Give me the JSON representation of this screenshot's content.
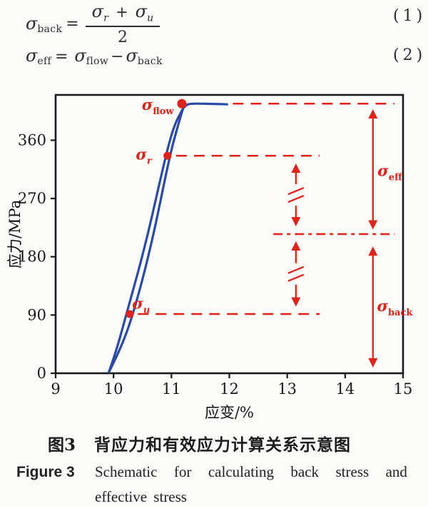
{
  "equations": {
    "eq1": {
      "lhs_sigma": "σ",
      "lhs_sub": "back",
      "equals": "=",
      "num_sigma1": "σ",
      "num_sub1": "r",
      "plus": "+",
      "num_sigma2": "σ",
      "num_sub2": "u",
      "denominator": "2",
      "number": "(1)"
    },
    "eq2": {
      "lhs_sigma": "σ",
      "lhs_sub": "eff",
      "equals": "=",
      "rhs1_sigma": "σ",
      "rhs1_sub": "flow",
      "minus": "−",
      "rhs2_sigma": "σ",
      "rhs2_sub": "back",
      "number": "(2)"
    }
  },
  "chart_data": {
    "type": "line",
    "title": "",
    "xlabel": "应变/%",
    "ylabel": "应力/MPa",
    "xlim": [
      9,
      15
    ],
    "ylim": [
      0,
      430
    ],
    "xticks": [
      "9",
      "10",
      "11",
      "12",
      "13",
      "14",
      "15"
    ],
    "yticks": [
      "0",
      "90",
      "180",
      "270",
      "360"
    ],
    "grid": false,
    "legend": false,
    "key_values": {
      "sigma_flow_MPa": 417,
      "sigma_r_MPa": 336,
      "sigma_u_MPa": 92,
      "sigma_back_MPa": 214,
      "unload_reload_strain_pct": 9.9,
      "flow_strain_pct": 11.2
    },
    "series": [
      {
        "name": "reloading-branch",
        "color": "#2b4aa5",
        "points": [
          [
            9.92,
            2
          ],
          [
            10.05,
            35
          ],
          [
            10.22,
            91
          ],
          [
            10.55,
            197
          ],
          [
            10.9,
            336
          ],
          [
            11.05,
            384
          ],
          [
            11.2,
            409
          ]
        ]
      },
      {
        "name": "unloading-branch",
        "color": "#2b4aa5",
        "points": [
          [
            9.92,
            2
          ],
          [
            10.11,
            35
          ],
          [
            10.34,
            91
          ],
          [
            10.66,
            200
          ],
          [
            10.97,
            336
          ],
          [
            11.11,
            382
          ],
          [
            11.2,
            409
          ]
        ]
      },
      {
        "name": "flow-plateau",
        "color": "#2b4aa5",
        "points": [
          [
            11.2,
            409
          ],
          [
            11.25,
            414.5
          ],
          [
            11.33,
            416.5
          ],
          [
            11.55,
            416.5
          ],
          [
            11.75,
            416
          ],
          [
            11.96,
            415.5
          ]
        ]
      }
    ],
    "markers": [
      {
        "name": "sigma-flow-point",
        "x": 11.18,
        "y": 416.5,
        "r": 6.5
      },
      {
        "name": "sigma-r-point",
        "x": 10.93,
        "y": 336,
        "r": 5.5
      },
      {
        "name": "sigma-u-point",
        "x": 10.28,
        "y": 91.5,
        "r": 5.5
      }
    ],
    "reference_lines": [
      {
        "name": "sigma-flow-level",
        "y": 416.5,
        "x1": 12.06,
        "x2": 14.85,
        "style": "dash"
      },
      {
        "name": "sigma-r-level",
        "y": 336,
        "x1": 11.08,
        "x2": 13.56,
        "style": "dash"
      },
      {
        "name": "sigma-u-level",
        "y": 91.5,
        "x1": 10.42,
        "x2": 13.56,
        "style": "dash"
      },
      {
        "name": "sigma-back-level",
        "y": 215,
        "x1": 12.76,
        "x2": 14.85,
        "style": "dashdot"
      }
    ],
    "arrows": [
      {
        "name": "r-to-mid-arrow",
        "x": 13.15,
        "y_top": 324,
        "y_bottom": 227,
        "break_marks": true
      },
      {
        "name": "mid-to-u-arrow",
        "x": 13.15,
        "y_top": 204,
        "y_bottom": 103,
        "break_marks": true
      },
      {
        "name": "sigma-eff-arrow",
        "x": 14.48,
        "y_top": 408,
        "y_bottom": 222,
        "break_marks": false
      },
      {
        "name": "sigma-back-arrow",
        "x": 14.48,
        "y_top": 196,
        "y_bottom": 9,
        "break_marks": false
      }
    ],
    "annotations": [
      {
        "name": "sigma-flow-label",
        "base": "σ",
        "sub": "flow",
        "x": 11.04,
        "y": 407,
        "anchor": "end"
      },
      {
        "name": "sigma-r-label",
        "base": "σ",
        "sub": "r",
        "x": 10.66,
        "y": 330,
        "anchor": "end"
      },
      {
        "name": "sigma-u-label",
        "base": "σ",
        "sub": "u",
        "x": 10.63,
        "y": 100,
        "anchor": "end"
      },
      {
        "name": "sigma-eff-label",
        "base": "σ",
        "sub": "eff",
        "x": 14.56,
        "y": 305,
        "anchor": "start"
      },
      {
        "name": "sigma-back-label",
        "base": "σ",
        "sub": "back",
        "x": 14.55,
        "y": 96,
        "anchor": "start"
      }
    ],
    "colors": {
      "curve": "#2b4aa5",
      "annotation": "#e02318",
      "axis": "#1a1a1a"
    }
  },
  "caption": {
    "zh_label": "图3",
    "zh_text": "背应力和有效应力计算关系示意图",
    "en_label": "Figure 3",
    "en_line1": "Schematic for calculating back stress and",
    "en_line2": "effective stress"
  }
}
